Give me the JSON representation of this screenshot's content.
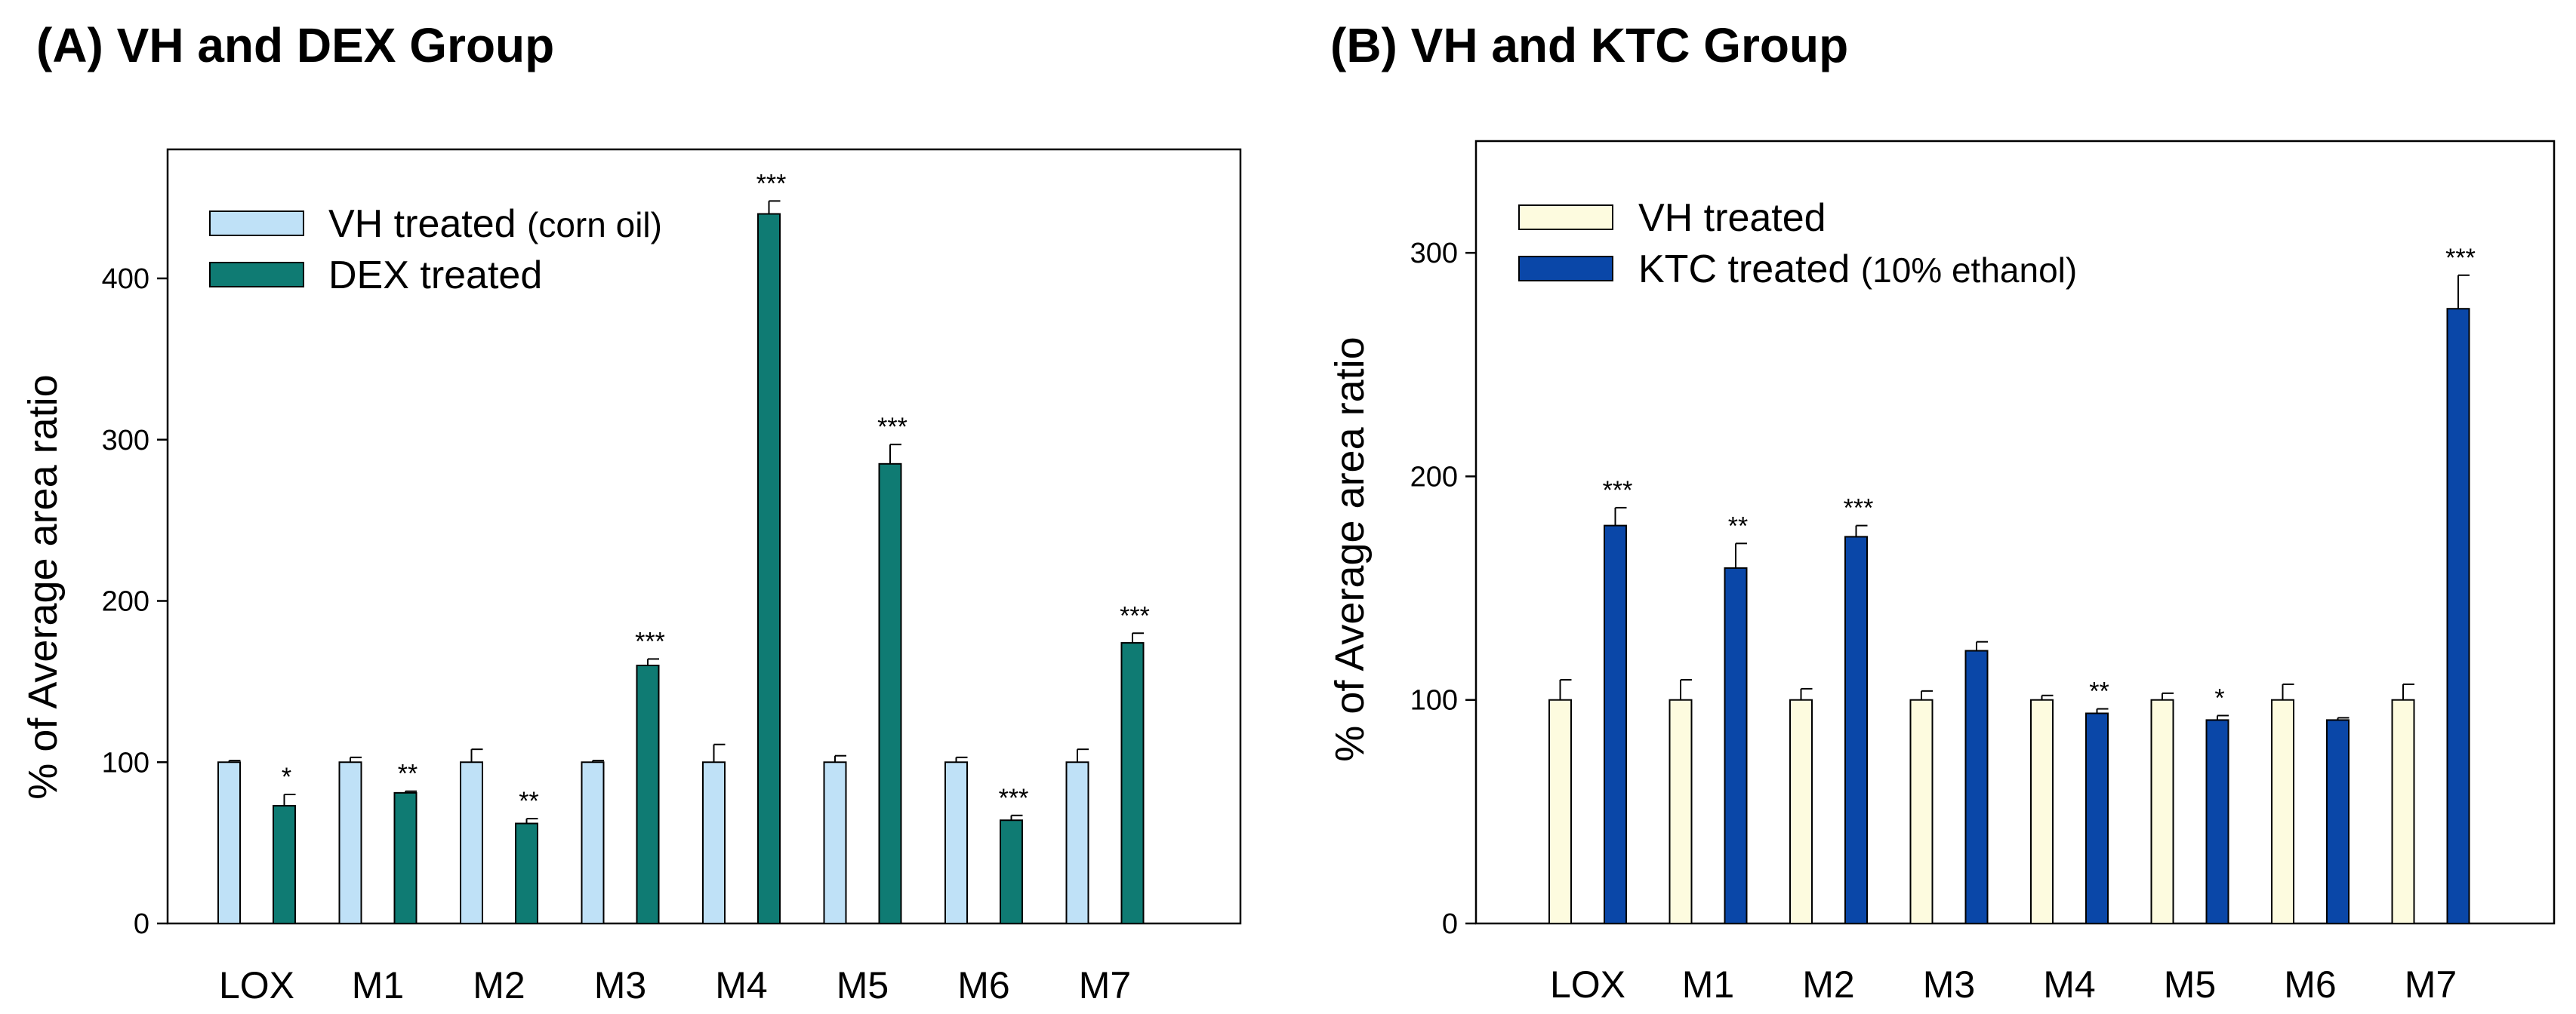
{
  "chart_data": [
    {
      "type": "bar",
      "title": "(A) VH and DEX Group",
      "xlabel": "",
      "ylabel": "% of Average area ratio",
      "ylim": [
        0,
        480
      ],
      "yticks": [
        0,
        100,
        200,
        300,
        400
      ],
      "categories": [
        "LOX",
        "M1",
        "M2",
        "M3",
        "M4",
        "M5",
        "M6",
        "M7"
      ],
      "legend_position": "top-left",
      "series": [
        {
          "name": "VH treated",
          "name_suffix": "(corn oil)",
          "color": "#bfe1f7",
          "values": [
            100,
            100,
            100,
            100,
            100,
            100,
            100,
            100
          ],
          "errors": [
            1,
            3,
            8,
            1,
            11,
            4,
            3,
            8
          ],
          "significance": [
            "",
            "",
            "",
            "",
            "",
            "",
            "",
            ""
          ]
        },
        {
          "name": "DEX treated",
          "name_suffix": "",
          "color": "#0f7b73",
          "values": [
            73,
            81,
            62,
            160,
            440,
            285,
            64,
            174
          ],
          "errors": [
            7,
            1,
            3,
            4,
            8,
            12,
            3,
            6
          ],
          "significance": [
            "*",
            "**",
            "**",
            "***",
            "***",
            "***",
            "***",
            "***"
          ]
        }
      ]
    },
    {
      "type": "bar",
      "title": "(B) VH and KTC Group",
      "xlabel": "",
      "ylabel": "% of Average area ratio",
      "ylim": [
        0,
        350
      ],
      "yticks": [
        0,
        100,
        200,
        300
      ],
      "categories": [
        "LOX",
        "M1",
        "M2",
        "M3",
        "M4",
        "M5",
        "M6",
        "M7"
      ],
      "legend_position": "top-left",
      "series": [
        {
          "name": "VH treated",
          "name_suffix": "",
          "color": "#fdfbdf",
          "values": [
            100,
            100,
            100,
            100,
            100,
            100,
            100,
            100
          ],
          "errors": [
            9,
            9,
            5,
            4,
            2,
            3,
            7,
            7
          ],
          "significance": [
            "",
            "",
            "",
            "",
            "",
            "",
            "",
            ""
          ]
        },
        {
          "name": "KTC treated",
          "name_suffix": "(10% ethanol)",
          "color": "#0a47a8",
          "values": [
            178,
            159,
            173,
            122,
            94,
            91,
            91,
            275
          ],
          "errors": [
            8,
            11,
            5,
            4,
            2,
            2,
            1,
            15
          ],
          "significance": [
            "***",
            "**",
            "***",
            "",
            "**",
            "*",
            "",
            "***"
          ]
        }
      ]
    }
  ]
}
